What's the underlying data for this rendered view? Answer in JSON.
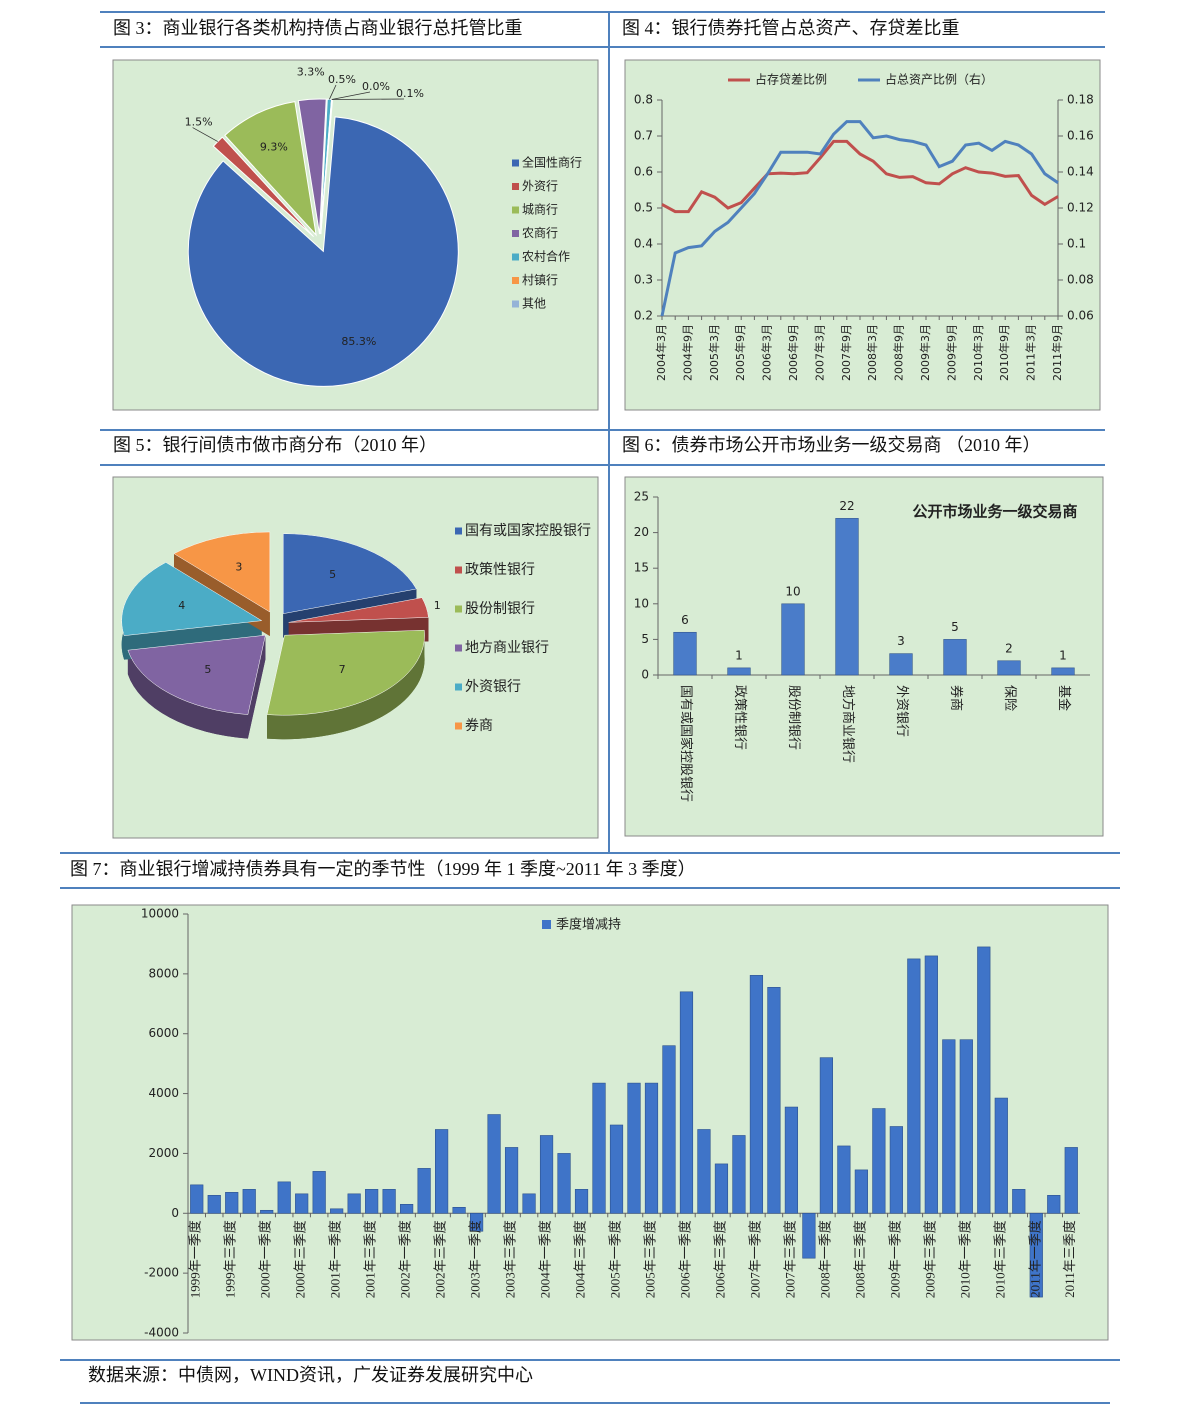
{
  "chart_data": [
    {
      "type": "pie",
      "title": "图 3：商业银行各类机构持债占商业银行总托管比重",
      "exploded": true,
      "categories": [
        "全国性商行",
        "外资行",
        "城商行",
        "农商行",
        "农村合作",
        "村镇行",
        "其他"
      ],
      "values": [
        85.3,
        1.5,
        9.3,
        3.3,
        0.5,
        0.0,
        0.1
      ],
      "value_labels": [
        "85.3%",
        "1.5%",
        "9.3%",
        "3.3%",
        "0.5%",
        "0.0%",
        "0.1%"
      ],
      "colors": [
        "#3b67b3",
        "#c0504d",
        "#9bbb59",
        "#8064a2",
        "#4bacc6",
        "#f79646",
        "#95b3d7"
      ],
      "legend": "right"
    },
    {
      "type": "line",
      "title": "图 4：银行债券托管占总资产、存贷差比重",
      "categories": [
        "2004年3月",
        null,
        "2004年9月",
        null,
        "2005年3月",
        null,
        "2005年9月",
        null,
        "2006年3月",
        null,
        "2006年9月",
        null,
        "2007年3月",
        null,
        "2007年9月",
        null,
        "2008年3月",
        null,
        "2008年9月",
        null,
        "2009年3月",
        null,
        "2009年9月",
        null,
        "2010年3月",
        null,
        "2010年9月",
        null,
        "2011年3月",
        null,
        "2011年9月"
      ],
      "series": [
        {
          "name": "占存贷差比例",
          "color": "#c0504d",
          "values": [
            0.51,
            0.49,
            0.49,
            0.545,
            0.53,
            0.5,
            0.515,
            0.555,
            0.595,
            0.597,
            0.595,
            0.598,
            0.64,
            0.685,
            0.685,
            0.65,
            0.63,
            0.595,
            0.585,
            0.587,
            0.57,
            0.567,
            0.595,
            0.612,
            0.6,
            0.597,
            0.588,
            0.59,
            0.535,
            0.51,
            0.532
          ]
        },
        {
          "name": "占总资产比例（右）",
          "color": "#4f81bd",
          "axis": "y2",
          "values": [
            0.06,
            0.095,
            0.098,
            0.099,
            0.107,
            0.112,
            0.12,
            0.128,
            0.139,
            0.151,
            0.151,
            0.151,
            0.15,
            0.161,
            0.168,
            0.168,
            0.159,
            0.16,
            0.158,
            0.157,
            0.155,
            0.143,
            0.146,
            0.155,
            0.156,
            0.152,
            0.157,
            0.155,
            0.15,
            0.139,
            0.134
          ]
        }
      ],
      "ylim": [
        0.2,
        0.8
      ],
      "yticks": [
        0.2,
        0.3,
        0.4,
        0.5,
        0.6,
        0.7,
        0.8
      ],
      "y2lim": [
        0.06,
        0.18
      ],
      "y2ticks": [
        0.06,
        0.08,
        0.1,
        0.12,
        0.14,
        0.16,
        0.18
      ],
      "legend": "top"
    },
    {
      "type": "pie",
      "title": "图 5：银行间债市做市商分布（2010 年）",
      "exploded": true,
      "three_d": true,
      "categories": [
        "国有或国家控股银行",
        "政策性银行",
        "股份制银行",
        "地方商业银行",
        "外资银行",
        "券商"
      ],
      "values": [
        5,
        1,
        7,
        5,
        4,
        3
      ],
      "colors": [
        "#3b67b3",
        "#c0504d",
        "#9bbb59",
        "#8064a2",
        "#4bacc6",
        "#f79646"
      ],
      "legend": "right"
    },
    {
      "type": "bar",
      "title": "图 6：债券市场公开市场业务一级交易商 （2010 年）",
      "subtitle": "公开市场业务一级交易商",
      "categories": [
        "国有或国家控股银行",
        "政策性银行",
        "股份制银行",
        "地方商业银行",
        "外资银行",
        "券商",
        "保险",
        "基金"
      ],
      "values": [
        6,
        1,
        10,
        22,
        3,
        5,
        2,
        1
      ],
      "color": "#4a7cc9",
      "ylim": [
        0,
        25
      ],
      "yticks": [
        0,
        5,
        10,
        15,
        20,
        25
      ]
    },
    {
      "type": "bar",
      "title": "图 7：商业银行增减持债券具有一定的季节性（1999 年 1 季度~2011 年 3 季度）",
      "categories": [
        "1999年一季度",
        null,
        "1999年三季度",
        null,
        "2000年一季度",
        null,
        "2000年三季度",
        null,
        "2001年一季度",
        null,
        "2001年三季度",
        null,
        "2002年一季度",
        null,
        "2002年三季度",
        null,
        "2003年一季度",
        null,
        "2003年三季度",
        null,
        "2004年一季度",
        null,
        "2004年三季度",
        null,
        "2005年一季度",
        null,
        "2005年三季度",
        null,
        "2006年一季度",
        null,
        "2006年三季度",
        null,
        "2007年一季度",
        null,
        "2007年三季度",
        null,
        "2008年一季度",
        null,
        "2008年三季度",
        null,
        "2009年一季度",
        null,
        "2009年三季度",
        null,
        "2010年一季度",
        null,
        "2010年三季度",
        null,
        "2011年一季度",
        null,
        "2011年三季度"
      ],
      "series": [
        {
          "name": "季度增减持",
          "color": "#3f74c8",
          "values": [
            950,
            600,
            700,
            800,
            100,
            1050,
            650,
            1400,
            150,
            650,
            800,
            800,
            300,
            1500,
            2800,
            200,
            -600,
            3300,
            2200,
            650,
            2600,
            2000,
            800,
            4350,
            2950,
            4350,
            4350,
            5600,
            7400,
            2800,
            1650,
            2600,
            7950,
            7550,
            3550,
            -1500,
            5200,
            2250,
            1450,
            3500,
            2900,
            8500,
            8600,
            5800,
            5800,
            8900,
            3850,
            800,
            -2800,
            600,
            2200
          ]
        }
      ],
      "ylim": [
        -4000,
        10000
      ],
      "yticks": [
        -4000,
        -2000,
        0,
        2000,
        4000,
        6000,
        8000,
        10000
      ],
      "legend": "top"
    }
  ],
  "source": "数据来源：中债网，WIND资讯，广发证券发展研究中心"
}
